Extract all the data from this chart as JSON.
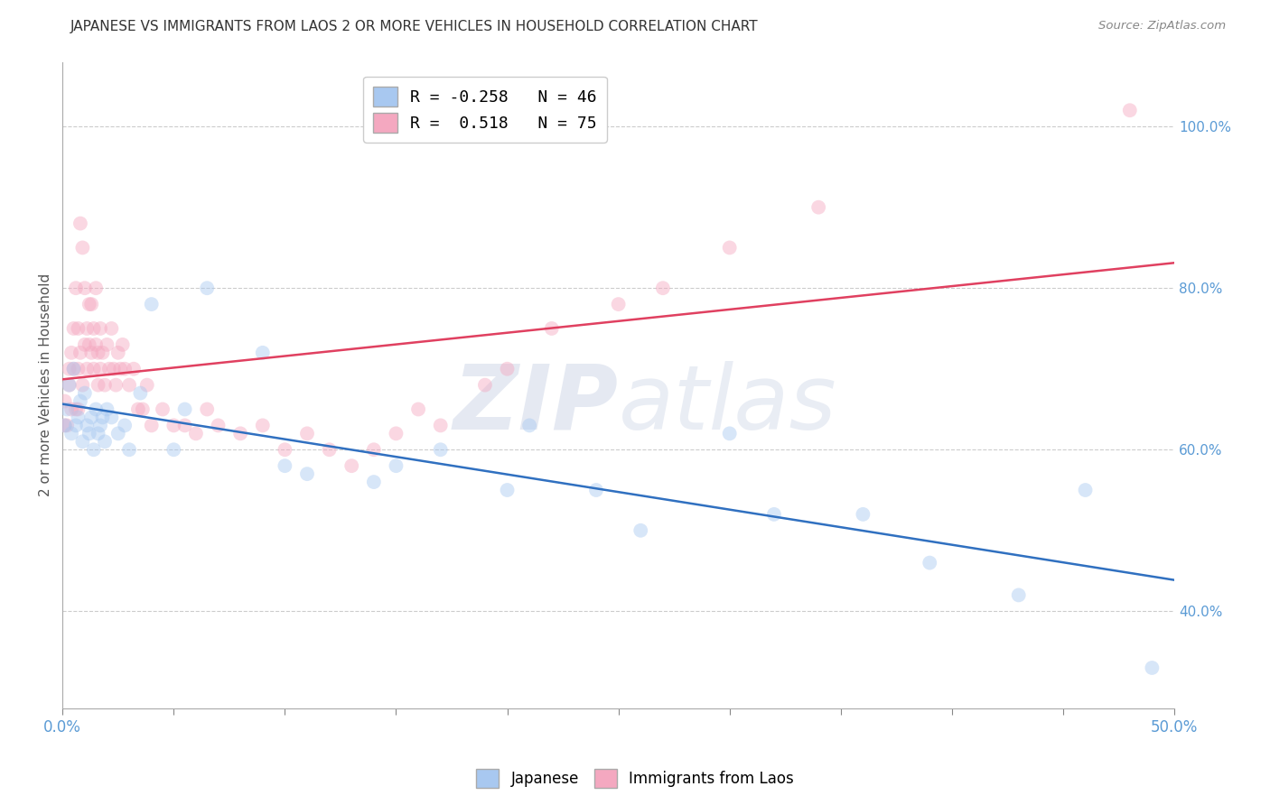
{
  "title": "JAPANESE VS IMMIGRANTS FROM LAOS 2 OR MORE VEHICLES IN HOUSEHOLD CORRELATION CHART",
  "source": "Source: ZipAtlas.com",
  "ylabel": "2 or more Vehicles in Household",
  "watermark_zip": "ZIP",
  "watermark_atlas": "atlas",
  "blue_label": "Japanese",
  "pink_label": "Immigrants from Laos",
  "blue_R": -0.258,
  "blue_N": 46,
  "pink_R": 0.518,
  "pink_N": 75,
  "xmin": 0.0,
  "xmax": 0.5,
  "ymin": 0.28,
  "ymax": 1.08,
  "right_yticks": [
    0.4,
    0.6,
    0.8,
    1.0
  ],
  "right_yticklabels": [
    "40.0%",
    "60.0%",
    "80.0%",
    "100.0%"
  ],
  "blue_color": "#A8C8F0",
  "pink_color": "#F4A8C0",
  "blue_line_color": "#3070C0",
  "pink_line_color": "#E04060",
  "background_color": "#FFFFFF",
  "grid_color": "#CCCCCC",
  "blue_x": [
    0.001,
    0.002,
    0.003,
    0.004,
    0.005,
    0.006,
    0.007,
    0.008,
    0.009,
    0.01,
    0.011,
    0.012,
    0.013,
    0.014,
    0.015,
    0.016,
    0.017,
    0.018,
    0.019,
    0.02,
    0.022,
    0.025,
    0.028,
    0.03,
    0.035,
    0.04,
    0.05,
    0.055,
    0.065,
    0.09,
    0.1,
    0.11,
    0.14,
    0.15,
    0.17,
    0.2,
    0.21,
    0.24,
    0.26,
    0.3,
    0.32,
    0.36,
    0.39,
    0.43,
    0.46,
    0.49
  ],
  "blue_y": [
    0.63,
    0.65,
    0.68,
    0.62,
    0.7,
    0.63,
    0.64,
    0.66,
    0.61,
    0.67,
    0.63,
    0.62,
    0.64,
    0.6,
    0.65,
    0.62,
    0.63,
    0.64,
    0.61,
    0.65,
    0.64,
    0.62,
    0.63,
    0.6,
    0.67,
    0.78,
    0.6,
    0.65,
    0.8,
    0.72,
    0.58,
    0.57,
    0.56,
    0.58,
    0.6,
    0.55,
    0.63,
    0.55,
    0.5,
    0.62,
    0.52,
    0.52,
    0.46,
    0.42,
    0.55,
    0.33
  ],
  "pink_x": [
    0.001,
    0.001,
    0.002,
    0.003,
    0.003,
    0.004,
    0.004,
    0.005,
    0.005,
    0.006,
    0.006,
    0.007,
    0.007,
    0.007,
    0.008,
    0.008,
    0.009,
    0.009,
    0.01,
    0.01,
    0.011,
    0.011,
    0.012,
    0.012,
    0.013,
    0.013,
    0.014,
    0.014,
    0.015,
    0.015,
    0.016,
    0.016,
    0.017,
    0.017,
    0.018,
    0.019,
    0.02,
    0.021,
    0.022,
    0.023,
    0.024,
    0.025,
    0.026,
    0.027,
    0.028,
    0.03,
    0.032,
    0.034,
    0.036,
    0.038,
    0.04,
    0.045,
    0.05,
    0.055,
    0.06,
    0.065,
    0.07,
    0.08,
    0.09,
    0.1,
    0.11,
    0.12,
    0.13,
    0.14,
    0.15,
    0.16,
    0.17,
    0.19,
    0.2,
    0.22,
    0.25,
    0.27,
    0.3,
    0.34,
    0.48
  ],
  "pink_y": [
    0.63,
    0.66,
    0.63,
    0.7,
    0.68,
    0.72,
    0.65,
    0.75,
    0.7,
    0.65,
    0.8,
    0.75,
    0.7,
    0.65,
    0.88,
    0.72,
    0.85,
    0.68,
    0.8,
    0.73,
    0.75,
    0.7,
    0.78,
    0.73,
    0.72,
    0.78,
    0.75,
    0.7,
    0.8,
    0.73,
    0.72,
    0.68,
    0.75,
    0.7,
    0.72,
    0.68,
    0.73,
    0.7,
    0.75,
    0.7,
    0.68,
    0.72,
    0.7,
    0.73,
    0.7,
    0.68,
    0.7,
    0.65,
    0.65,
    0.68,
    0.63,
    0.65,
    0.63,
    0.63,
    0.62,
    0.65,
    0.63,
    0.62,
    0.63,
    0.6,
    0.62,
    0.6,
    0.58,
    0.6,
    0.62,
    0.65,
    0.63,
    0.68,
    0.7,
    0.75,
    0.78,
    0.8,
    0.85,
    0.9,
    1.02
  ],
  "dot_size": 130,
  "dot_alpha": 0.45,
  "line_width": 1.8,
  "n_xticks": 11
}
